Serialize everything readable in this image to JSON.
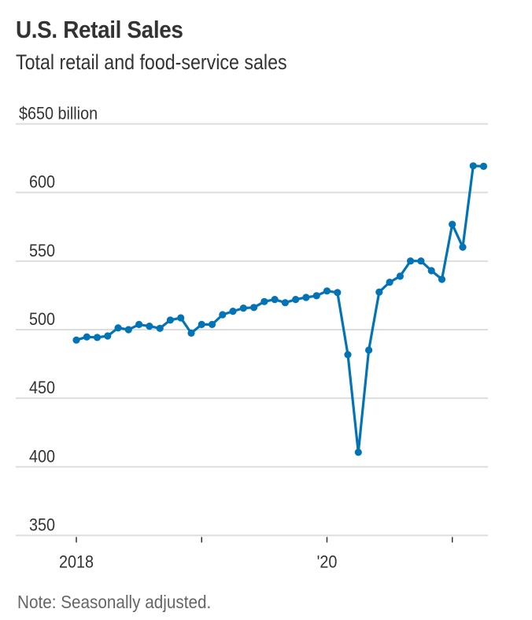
{
  "header": {
    "title": "U.S. Retail Sales",
    "subtitle": "Total retail and food-service sales"
  },
  "footer": {
    "note": "Note: Seasonally adjusted."
  },
  "colors": {
    "series": "#0274b6",
    "grid": "#dddddd",
    "text": "#333333",
    "note": "#666666"
  },
  "chart_data": {
    "type": "line",
    "title": "U.S. Retail Sales",
    "subtitle": "Total retail and food-service sales",
    "xlabel": "",
    "ylabel": "$650 billion",
    "ylim": [
      350,
      650
    ],
    "yticks": [
      350,
      400,
      450,
      500,
      550,
      600,
      650
    ],
    "ytick_labels": [
      "350",
      "400",
      "450",
      "500",
      "550",
      "600",
      "$650 billion"
    ],
    "xticks": [
      "2018-01",
      "2019-01",
      "2020-01",
      "2021-01"
    ],
    "xtick_labels": [
      "2018",
      "",
      "'20",
      ""
    ],
    "grid": true,
    "legend": "none",
    "markers": true,
    "series": [
      {
        "name": "Total retail and food-service sales",
        "x": [
          "2018-01",
          "2018-02",
          "2018-03",
          "2018-04",
          "2018-05",
          "2018-06",
          "2018-07",
          "2018-08",
          "2018-09",
          "2018-10",
          "2018-11",
          "2018-12",
          "2019-01",
          "2019-02",
          "2019-03",
          "2019-04",
          "2019-05",
          "2019-06",
          "2019-07",
          "2019-08",
          "2019-09",
          "2019-10",
          "2019-11",
          "2019-12",
          "2020-01",
          "2020-02",
          "2020-03",
          "2020-04",
          "2020-05",
          "2020-06",
          "2020-07",
          "2020-08",
          "2020-09",
          "2020-10",
          "2020-11",
          "2020-12",
          "2021-01",
          "2021-02",
          "2021-03",
          "2021-04"
        ],
        "values": [
          492.4,
          494.7,
          494.3,
          495.4,
          501.3,
          500.0,
          503.8,
          502.5,
          501.0,
          507.0,
          508.6,
          497.5,
          503.8,
          503.8,
          510.9,
          513.4,
          515.7,
          516.2,
          520.5,
          522.0,
          519.7,
          522.0,
          523.5,
          524.7,
          528.2,
          527.1,
          481.8,
          410.6,
          485.1,
          527.4,
          534.6,
          539.0,
          550.1,
          550.1,
          543.0,
          536.7,
          576.8,
          560.2,
          619.4,
          619.1
        ]
      }
    ]
  }
}
